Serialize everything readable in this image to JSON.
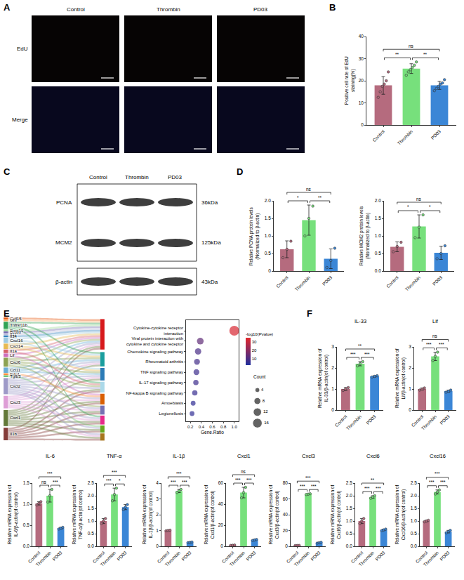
{
  "panel_letters": [
    "A",
    "B",
    "C",
    "D",
    "E",
    "F"
  ],
  "images": {
    "columns": [
      "Control",
      "Thrombin",
      "PD03"
    ],
    "rows": [
      "EdU",
      "Merge"
    ]
  },
  "blot": {
    "columns": [
      "Control",
      "Thrombin",
      "PD03"
    ],
    "rows": [
      {
        "label": "PCNA",
        "size": "36kDa"
      },
      {
        "label": "MCM2",
        "size": "125kDa"
      },
      {
        "label": "β-actin",
        "size": "43kDa"
      }
    ]
  },
  "chart_data": [
    {
      "type": "bar",
      "categories": [
        "Control",
        "Thrombin",
        "PD03"
      ],
      "colors": [
        "#b56b7e",
        "#77e07c",
        "#3b86d6"
      ],
      "values": [
        17.9,
        25.5,
        17.9
      ],
      "errors": [
        4,
        2.2,
        1.8
      ],
      "points": [
        [
          12.5,
          15,
          17.5,
          18.5,
          20,
          24
        ],
        [
          22.5,
          24,
          25,
          26,
          27,
          28.5
        ],
        [
          15.5,
          16.5,
          17.5,
          18.5,
          19,
          20.5
        ]
      ],
      "y_label": "Positive cell rate of EdU staining(%)",
      "ylim": [
        0,
        40
      ],
      "yticks": [
        0,
        10,
        20,
        30,
        40
      ],
      "comparisons": [
        {
          "between": [
            0,
            1
          ],
          "label": "**"
        },
        {
          "between": [
            1,
            2
          ],
          "label": "**"
        },
        {
          "between": [
            0,
            2
          ],
          "label": "ns"
        }
      ]
    },
    {
      "type": "bar",
      "categories": [
        "Control",
        "Thrombin",
        "PD03"
      ],
      "colors": [
        "#b56b7e",
        "#77e07c",
        "#3b86d6"
      ],
      "values": [
        0.62,
        1.45,
        0.35
      ],
      "errors": [
        0.24,
        0.43,
        0.28
      ],
      "points": [
        [
          0.38,
          0.62,
          0.85
        ],
        [
          1.0,
          1.5,
          1.85
        ],
        [
          0.1,
          0.3,
          0.65
        ]
      ],
      "y_label": "Relative PCNA protein levels (Normalized to β-actin)",
      "ylim": [
        0,
        2
      ],
      "yticks": [
        0,
        0.5,
        {
          "value": 1,
          "label": "1.0"
        },
        1.5,
        {
          "value": 2,
          "label": "2.0"
        }
      ],
      "comparisons": [
        {
          "between": [
            0,
            1
          ],
          "label": "*"
        },
        {
          "between": [
            1,
            2
          ],
          "label": "**"
        },
        {
          "between": [
            0,
            2
          ],
          "label": "ns"
        }
      ]
    },
    {
      "type": "bar",
      "categories": [
        "Control",
        "Thrombin",
        "PD03"
      ],
      "colors": [
        "#b56b7e",
        "#77e07c",
        "#3b86d6"
      ],
      "values": [
        0.69,
        1.27,
        0.52
      ],
      "errors": [
        0.14,
        0.33,
        0.19
      ],
      "points": [
        [
          0.55,
          0.7,
          0.82
        ],
        [
          0.95,
          1.25,
          1.6
        ],
        [
          0.35,
          0.5,
          0.72
        ]
      ],
      "y_label": "Relative MCM2 protein levels (Normalized to β-actin)",
      "ylim": [
        0,
        2
      ],
      "yticks": [
        {
          "value": 0,
          "label": "0.0"
        },
        0.5,
        {
          "value": 1,
          "label": "1.0"
        },
        1.5,
        {
          "value": 2,
          "label": "2.0"
        }
      ],
      "comparisons": [
        {
          "between": [
            0,
            1
          ],
          "label": "*"
        },
        {
          "between": [
            1,
            2
          ],
          "label": "*"
        },
        {
          "between": [
            0,
            2
          ],
          "label": "ns"
        }
      ]
    },
    {
      "type": "enrichment",
      "genes": [
        "Gdf15",
        "Ghr",
        "Tnfrsf11b",
        "Bmp10",
        "Bmp3",
        "Il11",
        "Il34",
        "Cxcl16",
        "Cxcl14",
        "Il1a",
        "Lif",
        "Cxcl6",
        "Ccl11",
        "Edn1",
        "Tgfb3",
        "Cxcl2",
        "Cxcl3",
        "Cxcl1",
        "Il1b"
      ],
      "pathways": [
        {
          "name": "Cytokine-cytokine receptor interaction",
          "gene_ratio": 1.0,
          "neg_log10_p": 33,
          "count": 17,
          "genes": [
            "Gdf15",
            "Ghr",
            "Tnfrsf11b",
            "Bmp10",
            "Bmp3",
            "Il11",
            "Il34",
            "Cxcl16",
            "Cxcl14",
            "Il1a",
            "Lif",
            "Cxcl6",
            "Ccl11",
            "Cxcl2",
            "Cxcl3",
            "Cxcl1",
            "Il1b"
          ]
        },
        {
          "name": "Viral protein interaction with cytokine and cytokine receptor",
          "gene_ratio": 0.38,
          "neg_log10_p": 13,
          "count": 8,
          "genes": [
            "Tnfrsf11b",
            "Cxcl16",
            "Cxcl14",
            "Cxcl6",
            "Ccl11",
            "Cxcl2",
            "Cxcl3",
            "Cxcl1"
          ]
        },
        {
          "name": "Chemokine signaling pathway",
          "gene_ratio": 0.34,
          "neg_log10_p": 9,
          "count": 7,
          "genes": [
            "Cxcl16",
            "Cxcl14",
            "Cxcl6",
            "Ccl11",
            "Cxcl2",
            "Cxcl3",
            "Cxcl1"
          ]
        },
        {
          "name": "Rheumatoid arthritis",
          "gene_ratio": 0.32,
          "neg_log10_p": 8,
          "count": 6,
          "genes": [
            "Tnfrsf11b",
            "Il1a",
            "Cxcl6",
            "Cxcl2",
            "Cxcl1",
            "Il1b"
          ]
        },
        {
          "name": "TNF signaling pathway",
          "gene_ratio": 0.31,
          "neg_log10_p": 7,
          "count": 6,
          "genes": [
            "Lif",
            "Edn1",
            "Cxcl2",
            "Cxcl3",
            "Cxcl1",
            "Il1b"
          ]
        },
        {
          "name": "IL-17 signaling pathway",
          "gene_ratio": 0.3,
          "neg_log10_p": 7,
          "count": 5,
          "genes": [
            "Cxcl6",
            "Cxcl2",
            "Cxcl3",
            "Cxcl1",
            "Il1b"
          ]
        },
        {
          "name": "NF-kappa B signaling pathway",
          "gene_ratio": 0.28,
          "neg_log10_p": 6,
          "count": 5,
          "genes": [
            "Tnfrsf11b",
            "Cxcl2",
            "Cxcl3",
            "Cxcl1",
            "Il1b"
          ]
        },
        {
          "name": "Amoebiasis",
          "gene_ratio": 0.25,
          "neg_log10_p": 5,
          "count": 4,
          "genes": [
            "Tgfb3",
            "Cxcl2",
            "Cxcl1",
            "Il1b"
          ]
        },
        {
          "name": "Legionellosis",
          "gene_ratio": 0.23,
          "neg_log10_p": 5,
          "count": 4,
          "genes": [
            "Cxcl2",
            "Cxcl3",
            "Cxcl1",
            "Il1b"
          ]
        }
      ],
      "x_label": "Gene.Ratio",
      "xlim": [
        0.12,
        1.08
      ],
      "xticks": [
        0.2,
        0.4,
        0.6,
        0.8,
        {
          "value": 1,
          "label": "1.0"
        }
      ],
      "color_label": "-log10(Pvalue)",
      "clim": [
        2,
        35
      ],
      "cticks": [
        10,
        20,
        30
      ],
      "size_label": "Count",
      "size_ticks": [
        4,
        8,
        12,
        16
      ]
    },
    {
      "type": "bar",
      "title": "IL-33",
      "categories": [
        "Control",
        "Thrombin",
        "PD03"
      ],
      "colors": [
        "#b56b7e",
        "#77e07c",
        "#3b86d6"
      ],
      "values": [
        1.0,
        2.2,
        1.6
      ],
      "errors": [
        0.07,
        0.1,
        0.03
      ],
      "points": [
        [
          0.93,
          1.0,
          1.07
        ],
        [
          2.1,
          2.2,
          2.3
        ],
        [
          1.57,
          1.6,
          1.63
        ]
      ],
      "y_label": "Relative mRNA expression of IL-33/β-actin(of control)",
      "ylim": [
        0,
        3
      ],
      "yticks": [
        0,
        1,
        2,
        3
      ],
      "comparisons": [
        {
          "between": [
            0,
            1
          ],
          "label": "***"
        },
        {
          "between": [
            1,
            2
          ],
          "label": "***"
        },
        {
          "between": [
            0,
            2
          ],
          "label": "**"
        }
      ]
    },
    {
      "type": "bar",
      "title": "Lif",
      "categories": [
        "Control",
        "Thrombin",
        "PD03"
      ],
      "colors": [
        "#b56b7e",
        "#77e07c",
        "#3b86d6"
      ],
      "values": [
        1.0,
        2.55,
        0.9
      ],
      "errors": [
        0.05,
        0.2,
        0.05
      ],
      "points": [
        [
          0.95,
          1.0,
          1.05
        ],
        [
          2.35,
          2.55,
          2.75
        ],
        [
          0.85,
          0.9,
          0.95
        ]
      ],
      "y_label": "Relative mRNA expression of Lif/β-actin(of control)",
      "ylim": [
        0,
        3
      ],
      "yticks": [
        0,
        1,
        2,
        3
      ],
      "comparisons": [
        {
          "between": [
            0,
            1
          ],
          "label": "***"
        },
        {
          "between": [
            1,
            2
          ],
          "label": "***"
        },
        {
          "between": [
            0,
            2
          ],
          "label": "ns"
        }
      ]
    },
    {
      "type": "bar",
      "title": "IL-6",
      "categories": [
        "Control",
        "Thrombin",
        "PD03"
      ],
      "colors": [
        "#b56b7e",
        "#77e07c",
        "#3b86d6"
      ],
      "values": [
        1.02,
        1.2,
        0.43
      ],
      "errors": [
        0.04,
        0.15,
        0.02
      ],
      "points": [
        [
          0.98,
          1.02,
          1.06
        ],
        [
          1.05,
          1.2,
          1.35
        ],
        [
          0.41,
          0.43,
          0.45
        ]
      ],
      "y_label": "Relative mRNA expression of IL-6/β-actin(of control)",
      "ylim": [
        0,
        1.5
      ],
      "yticks": [
        {
          "value": 0,
          "label": "0.0"
        },
        0.5,
        {
          "value": 1,
          "label": "1.0"
        },
        1.5
      ],
      "comparisons": [
        {
          "between": [
            0,
            1
          ],
          "label": "ns"
        },
        {
          "between": [
            1,
            2
          ],
          "label": "***"
        },
        {
          "between": [
            0,
            2
          ],
          "label": "***"
        }
      ]
    },
    {
      "type": "bar",
      "title": "TNF-α",
      "categories": [
        "Control",
        "Thrombin",
        "PD03"
      ],
      "colors": [
        "#b56b7e",
        "#77e07c",
        "#3b86d6"
      ],
      "values": [
        1.0,
        2.05,
        1.55
      ],
      "errors": [
        0.1,
        0.25,
        0.1
      ],
      "points": [
        [
          0.9,
          1.0,
          1.1
        ],
        [
          1.8,
          2.05,
          2.3
        ],
        [
          1.45,
          1.55,
          1.65
        ]
      ],
      "y_label": "Relative mRNA expression of TNF-α/β-actin(of control)",
      "ylim": [
        0,
        2.5
      ],
      "yticks": [
        {
          "value": 0,
          "label": "0.0"
        },
        0.5,
        {
          "value": 1,
          "label": "1.0"
        },
        1.5,
        {
          "value": 2,
          "label": "2.0"
        },
        2.5
      ],
      "comparisons": [
        {
          "between": [
            0,
            1
          ],
          "label": "***"
        },
        {
          "between": [
            1,
            2
          ],
          "label": "*"
        },
        {
          "between": [
            0,
            2
          ],
          "label": "***"
        }
      ]
    },
    {
      "type": "bar",
      "title": "IL-1β",
      "categories": [
        "Control",
        "Thrombin",
        "PD03"
      ],
      "colors": [
        "#b56b7e",
        "#77e07c",
        "#3b86d6"
      ],
      "values": [
        1.0,
        3.5,
        0.25
      ],
      "errors": [
        0.02,
        0.1,
        0.02
      ],
      "points": [
        [
          0.98,
          1.0,
          1.02
        ],
        [
          3.4,
          3.5,
          3.6
        ],
        [
          0.23,
          0.25,
          0.27
        ]
      ],
      "y_label": "Relative mRNA expression of IL-1β/β-actin(of control)",
      "ylim": [
        0,
        4
      ],
      "yticks": [
        0,
        1,
        2,
        3,
        4
      ],
      "comparisons": [
        {
          "between": [
            0,
            1
          ],
          "label": "***"
        },
        {
          "between": [
            1,
            2
          ],
          "label": "***"
        },
        {
          "between": [
            0,
            2
          ],
          "label": "***"
        }
      ]
    },
    {
      "type": "bar",
      "title": "Cxcl1",
      "categories": [
        "Control",
        "Thrombin",
        "PD03"
      ],
      "colors": [
        "#b56b7e",
        "#77e07c",
        "#3b86d6"
      ],
      "values": [
        1.0,
        51,
        6
      ],
      "errors": [
        0.2,
        5,
        0.5
      ],
      "points": [
        [
          0.8,
          1.0,
          1.2
        ],
        [
          46,
          51,
          56
        ],
        [
          5.5,
          6,
          6.5
        ]
      ],
      "y_label": "Relative mRNA expression of Cxcl1/β-actin(of control)",
      "ylim": [
        0,
        60
      ],
      "yticks": [
        0,
        20,
        40,
        60
      ],
      "comparisons": [
        {
          "between": [
            0,
            1
          ],
          "label": "***"
        },
        {
          "between": [
            1,
            2
          ],
          "label": "***"
        },
        {
          "between": [
            0,
            2
          ],
          "label": "ns"
        }
      ]
    },
    {
      "type": "bar",
      "title": "Cxcl3",
      "categories": [
        "Control",
        "Thrombin",
        "PD03"
      ],
      "colors": [
        "#b56b7e",
        "#77e07c",
        "#3b86d6"
      ],
      "values": [
        1.0,
        66,
        4.5
      ],
      "errors": [
        0.1,
        0.5,
        0.5
      ],
      "points": [
        [
          0.9,
          1.0,
          1.1
        ],
        [
          65.5,
          66,
          66.5
        ],
        [
          4,
          4.5,
          5
        ]
      ],
      "y_label": "Relative mRNA expression of Cxcl3/β-actin(of control)",
      "ylim": [
        0,
        80
      ],
      "yticks": [
        0,
        20,
        40,
        60,
        80
      ],
      "comparisons": [
        {
          "between": [
            0,
            1
          ],
          "label": "***"
        },
        {
          "between": [
            1,
            2
          ],
          "label": "***"
        },
        {
          "between": [
            0,
            2
          ],
          "label": "***"
        }
      ]
    },
    {
      "type": "bar",
      "title": "Cxcl6",
      "categories": [
        "Control",
        "Thrombin",
        "PD03"
      ],
      "colors": [
        "#b56b7e",
        "#77e07c",
        "#3b86d6"
      ],
      "values": [
        1.0,
        1.95,
        0.65
      ],
      "errors": [
        0.1,
        0.05,
        0.03
      ],
      "points": [
        [
          0.9,
          1.0,
          1.1
        ],
        [
          1.9,
          1.95,
          2.0
        ],
        [
          0.62,
          0.65,
          0.68
        ]
      ],
      "y_label": "Relative mRNA expression of Cxcl6/β-actin(of control)",
      "ylim": [
        0,
        2.5
      ],
      "yticks": [
        {
          "value": 0,
          "label": "0.0"
        },
        0.5,
        {
          "value": 1,
          "label": "1.0"
        },
        1.5,
        {
          "value": 2,
          "label": "2.0"
        },
        2.5
      ],
      "comparisons": [
        {
          "between": [
            0,
            1
          ],
          "label": "***"
        },
        {
          "between": [
            1,
            2
          ],
          "label": "***"
        },
        {
          "between": [
            0,
            2
          ],
          "label": "**"
        }
      ]
    },
    {
      "type": "bar",
      "title": "Cxcl16",
      "categories": [
        "Control",
        "Thrombin",
        "PD03"
      ],
      "colors": [
        "#b56b7e",
        "#77e07c",
        "#3b86d6"
      ],
      "values": [
        1.0,
        2.15,
        0.58
      ],
      "errors": [
        0.03,
        0.08,
        0.05
      ],
      "points": [
        [
          0.97,
          1.0,
          1.03
        ],
        [
          2.07,
          2.15,
          2.23
        ],
        [
          0.53,
          0.58,
          0.63
        ]
      ],
      "y_label": "Relative mRNA expression of Cxcl16/β-actin(of control)",
      "ylim": [
        0,
        2.5
      ],
      "yticks": [
        {
          "value": 0,
          "label": "0.0"
        },
        0.5,
        {
          "value": 1,
          "label": "1.0"
        },
        1.5,
        {
          "value": 2,
          "label": "2.0"
        },
        2.5
      ],
      "comparisons": [
        {
          "between": [
            0,
            1
          ],
          "label": "***"
        },
        {
          "between": [
            1,
            2
          ],
          "label": "***"
        },
        {
          "between": [
            0,
            2
          ],
          "label": "***"
        }
      ]
    }
  ]
}
